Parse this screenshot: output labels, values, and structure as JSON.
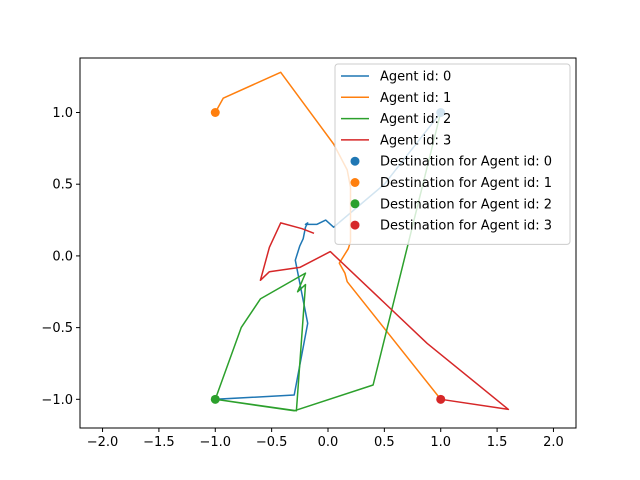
{
  "chart_data": {
    "type": "line",
    "title": "",
    "xlabel": "",
    "ylabel": "",
    "xlim": [
      -2.2,
      2.2
    ],
    "ylim": [
      -1.2,
      1.38
    ],
    "xticks": [
      -2.0,
      -1.5,
      -1.0,
      -0.5,
      0.0,
      0.5,
      1.0,
      1.5,
      2.0
    ],
    "xtick_labels": [
      "−2.0",
      "−1.5",
      "−1.0",
      "−0.5",
      "0.0",
      "0.5",
      "1.0",
      "1.5",
      "2.0"
    ],
    "yticks": [
      -1.0,
      -0.5,
      0.0,
      0.5,
      1.0
    ],
    "ytick_labels": [
      "−1.0",
      "−0.5",
      "0.0",
      "0.5",
      "1.0"
    ],
    "grid": false,
    "legend_position": "top-right",
    "series": [
      {
        "name": "Agent id: 0",
        "color": "#1f77b4",
        "x": [
          -1.0,
          -0.3,
          -0.18,
          -0.29,
          -0.25,
          -0.22,
          -0.2,
          -0.18,
          -0.2,
          -0.1,
          -0.02,
          0.05,
          0.5,
          0.98
        ],
        "y": [
          -1.0,
          -0.97,
          -0.47,
          -0.03,
          0.07,
          0.12,
          0.2,
          0.23,
          0.22,
          0.22,
          0.25,
          0.2,
          0.5,
          0.98
        ]
      },
      {
        "name": "Agent id: 1",
        "color": "#ff7f0e",
        "x": [
          1.0,
          0.17,
          0.15,
          0.1,
          0.18,
          0.2,
          0.2,
          0.17,
          0.05,
          -0.42,
          -0.93,
          -1.0
        ],
        "y": [
          -1.0,
          -0.18,
          -0.12,
          -0.05,
          0.05,
          0.1,
          0.48,
          0.6,
          0.78,
          1.28,
          1.1,
          1.0
        ]
      },
      {
        "name": "Agent id: 2",
        "color": "#2ca02c",
        "x": [
          -1.0,
          -0.77,
          -0.6,
          -0.2,
          -0.27,
          -0.2,
          -0.28,
          -1.0,
          -0.3,
          0.4,
          1.0
        ],
        "y": [
          -1.0,
          -0.5,
          -0.3,
          -0.12,
          -0.25,
          -0.2,
          -1.08,
          -1.0,
          -1.08,
          -0.9,
          1.0
        ]
      },
      {
        "name": "Agent id: 3",
        "color": "#d62728",
        "x": [
          -0.13,
          -0.23,
          -0.42,
          -0.52,
          -0.6,
          -0.52,
          -0.25,
          0.02,
          0.88,
          1.6,
          1.0
        ],
        "y": [
          0.16,
          0.19,
          0.23,
          0.06,
          -0.17,
          -0.11,
          -0.08,
          0.03,
          -0.61,
          -1.07,
          -1.0
        ]
      }
    ],
    "destinations": [
      {
        "name": "Destination for Agent id: 0",
        "color": "#1f77b4",
        "x": 1.0,
        "y": 1.0
      },
      {
        "name": "Destination for Agent id: 1",
        "color": "#ff7f0e",
        "x": -1.0,
        "y": 1.0
      },
      {
        "name": "Destination for Agent id: 2",
        "color": "#2ca02c",
        "x": -1.0,
        "y": -1.0
      },
      {
        "name": "Destination for Agent id: 3",
        "color": "#d62728",
        "x": 1.0,
        "y": -1.0
      }
    ]
  }
}
